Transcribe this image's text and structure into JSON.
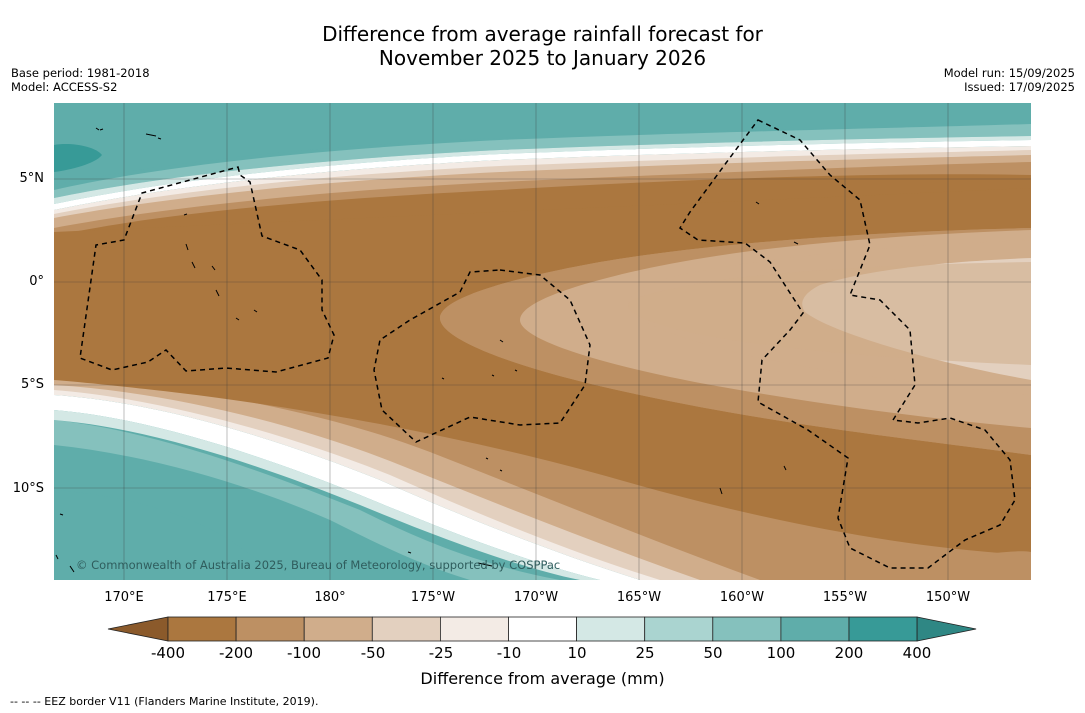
{
  "title": {
    "line1": "Difference from average rainfall forecast for",
    "line2": "November 2025 to January 2026"
  },
  "meta_left": {
    "base_period": "Base period: 1981-2018",
    "model": "Model: ACCESS-S2"
  },
  "meta_right": {
    "model_run": "Model run: 15/09/2025",
    "issued": "Issued: 17/09/2025"
  },
  "map": {
    "region": "Central Pacific",
    "lat_labels": [
      "5°N",
      "0°",
      "5°S",
      "10°S"
    ],
    "lon_labels": [
      "170°E",
      "175°E",
      "180°",
      "175°W",
      "170°W",
      "165°W",
      "160°W",
      "155°W",
      "150°W"
    ],
    "credit": "© Commonwealth of Australia 2025, Bureau of Meteorology, supported by COSPPac",
    "eez_line_style": "dashed black"
  },
  "colorbar": {
    "labels": [
      "-400",
      "-200",
      "-100",
      "-50",
      "-25",
      "-10",
      "10",
      "25",
      "50",
      "100",
      "200",
      "400"
    ],
    "colors": [
      "#8b5a2b",
      "#ab773f",
      "#bd9063",
      "#d0ad8b",
      "#e3d0bf",
      "#f3ebe5",
      "#ffffff",
      "#d4e8e5",
      "#aad4d0",
      "#85c1bd",
      "#5fadaa",
      "#379a97",
      "#2f8784"
    ],
    "title": "Difference from average (mm)"
  },
  "footer": "--  --  -- EEZ border V11 (Flanders Marine Institute, 2019)."
}
